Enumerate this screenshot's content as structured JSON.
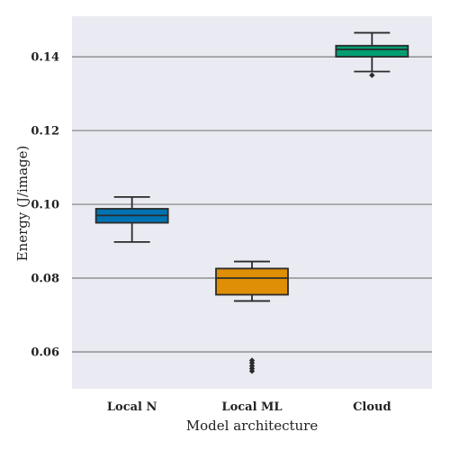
{
  "chart_data": {
    "type": "box",
    "title": "",
    "xlabel": "Model architecture",
    "ylabel": "Energy (J/image)",
    "ylim": [
      0.05,
      0.151
    ],
    "yticks": [
      0.06,
      0.08,
      0.1,
      0.12,
      0.14
    ],
    "ytick_labels": [
      "0.06",
      "0.08",
      "0.10",
      "0.12",
      "0.14"
    ],
    "grid": "horizontal",
    "categories": [
      "Local N",
      "Local ML",
      "Cloud"
    ],
    "boxes": [
      {
        "category": "Local N",
        "color": "#0173b2",
        "whisker_low": 0.0898,
        "q1": 0.095,
        "median": 0.097,
        "q3": 0.0988,
        "whisker_high": 0.102,
        "outliers": []
      },
      {
        "category": "Local ML",
        "color": "#de8f05",
        "whisker_low": 0.0738,
        "q1": 0.0755,
        "median": 0.08,
        "q3": 0.0826,
        "whisker_high": 0.0845,
        "outliers": [
          0.0548,
          0.0555,
          0.0562,
          0.057,
          0.0577
        ]
      },
      {
        "category": "Cloud",
        "color": "#029e73",
        "whisker_low": 0.136,
        "q1": 0.14,
        "median": 0.142,
        "q3": 0.143,
        "whisker_high": 0.1465,
        "outliers": [
          0.135
        ]
      }
    ]
  }
}
